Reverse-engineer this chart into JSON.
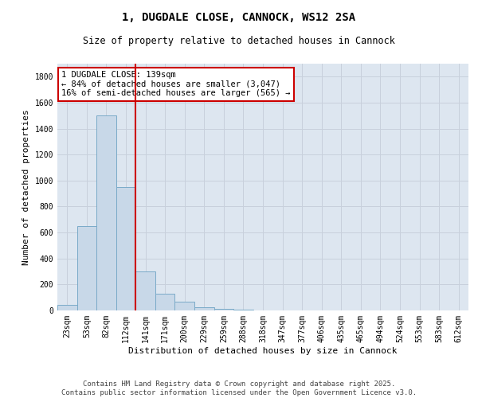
{
  "title_line1": "1, DUGDALE CLOSE, CANNOCK, WS12 2SA",
  "title_line2": "Size of property relative to detached houses in Cannock",
  "xlabel": "Distribution of detached houses by size in Cannock",
  "ylabel": "Number of detached properties",
  "bar_labels": [
    "23sqm",
    "53sqm",
    "82sqm",
    "112sqm",
    "141sqm",
    "171sqm",
    "200sqm",
    "229sqm",
    "259sqm",
    "288sqm",
    "318sqm",
    "347sqm",
    "377sqm",
    "406sqm",
    "435sqm",
    "465sqm",
    "494sqm",
    "524sqm",
    "553sqm",
    "583sqm",
    "612sqm"
  ],
  "bar_values": [
    40,
    650,
    1500,
    950,
    300,
    130,
    65,
    25,
    15,
    5,
    0,
    0,
    0,
    0,
    0,
    0,
    0,
    0,
    0,
    0,
    0
  ],
  "bar_color": "#c8d8e8",
  "bar_edgecolor": "#7aaac8",
  "vline_color": "#cc0000",
  "annotation_text": "1 DUGDALE CLOSE: 139sqm\n← 84% of detached houses are smaller (3,047)\n16% of semi-detached houses are larger (565) →",
  "annotation_box_edgecolor": "#cc0000",
  "annotation_box_facecolor": "#ffffff",
  "ylim": [
    0,
    1900
  ],
  "yticks": [
    0,
    200,
    400,
    600,
    800,
    1000,
    1200,
    1400,
    1600,
    1800
  ],
  "grid_color": "#c8d0dc",
  "bg_color": "#dde6f0",
  "footer_text": "Contains HM Land Registry data © Crown copyright and database right 2025.\nContains public sector information licensed under the Open Government Licence v3.0.",
  "title_fontsize": 10,
  "subtitle_fontsize": 8.5,
  "axis_label_fontsize": 8,
  "tick_fontsize": 7,
  "annotation_fontsize": 7.5,
  "footer_fontsize": 6.5
}
